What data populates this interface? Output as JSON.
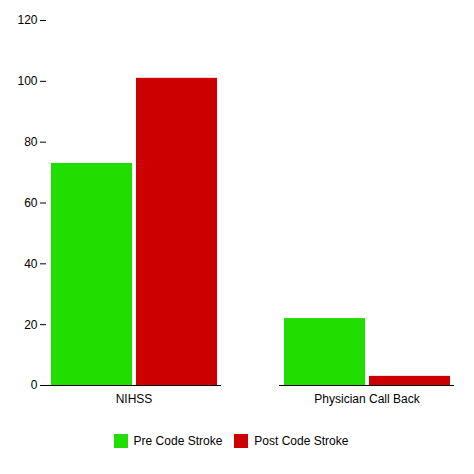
{
  "chart_data": {
    "type": "bar",
    "categories": [
      "NIHSS",
      "Physician Call Back"
    ],
    "series": [
      {
        "name": "Pre Code Stroke",
        "color": "#22dd00",
        "values": [
          73,
          22
        ]
      },
      {
        "name": "Post Code Stroke",
        "color": "#cc0000",
        "values": [
          101,
          3
        ]
      }
    ],
    "ylim": [
      0,
      120
    ],
    "yticks": [
      0,
      20,
      40,
      60,
      80,
      100,
      120
    ],
    "grid": false,
    "legend": "bottom"
  }
}
